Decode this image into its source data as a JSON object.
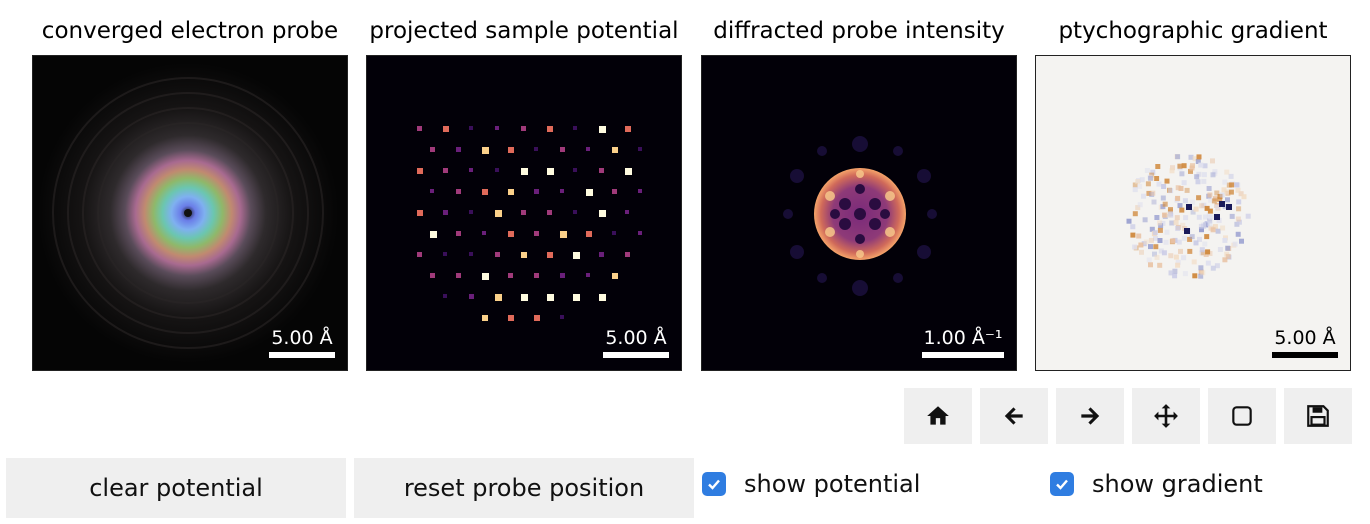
{
  "panels": [
    {
      "title": "converged electron probe",
      "scale_label": "5.00 Å"
    },
    {
      "title": "projected sample potential",
      "scale_label": "5.00 Å"
    },
    {
      "title": "diffracted probe intensity",
      "scale_label": "1.00 Å⁻¹"
    },
    {
      "title": "ptychographic gradient",
      "scale_label": "5.00 Å"
    }
  ],
  "toolbar": [
    "home-icon",
    "back-arrow-icon",
    "forward-arrow-icon",
    "pan-move-icon",
    "zoom-rect-icon",
    "save-icon"
  ],
  "controls": {
    "clear_label": "clear potential",
    "reset_label": "reset probe position",
    "show_potential_label": "show potential",
    "show_potential_checked": true,
    "show_gradient_label": "show gradient",
    "show_gradient_checked": true
  },
  "colors": {
    "checkbox": "#2f7de1",
    "button_bg": "#efefef"
  }
}
